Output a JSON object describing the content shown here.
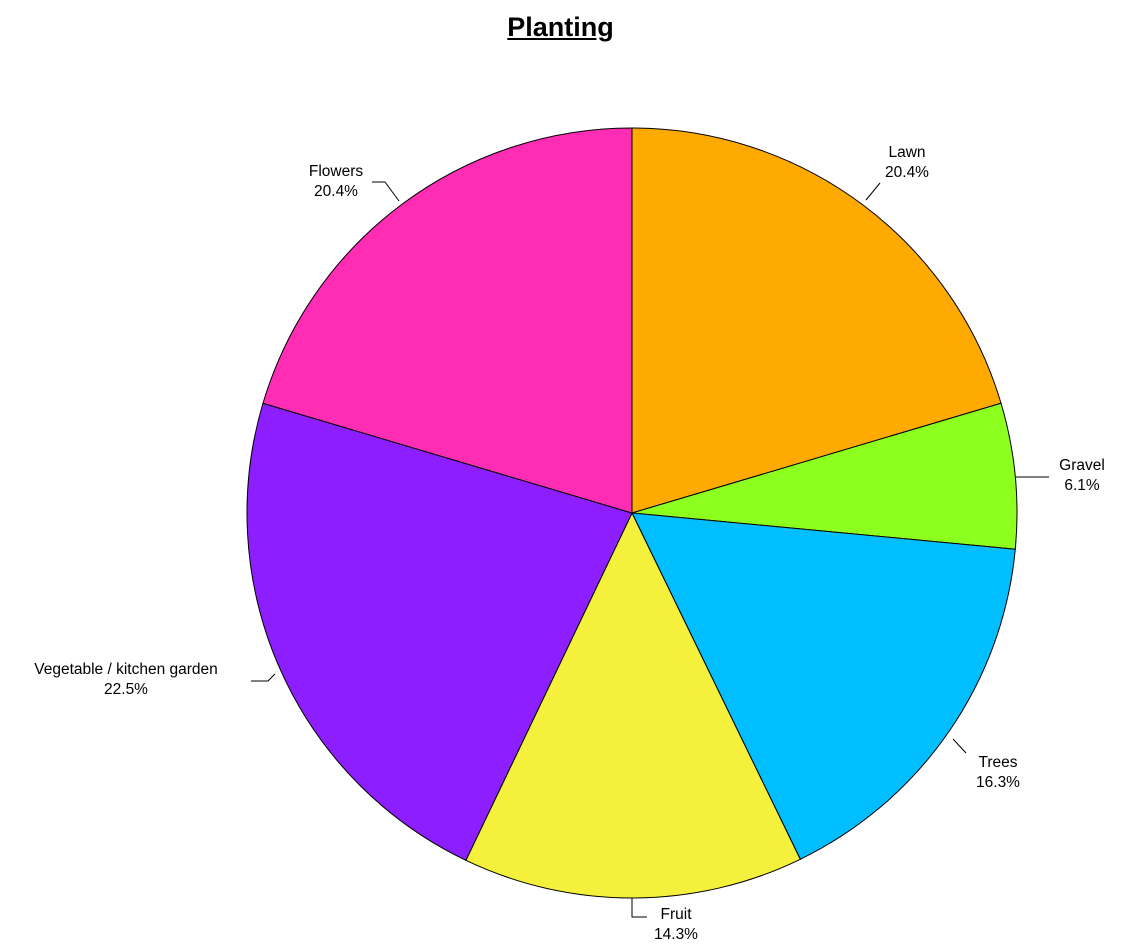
{
  "chart_data": {
    "type": "pie",
    "title": "Planting",
    "slices": [
      {
        "label": "Lawn",
        "pct_label": "20.4%",
        "value": 20.4,
        "color": "#FFAA00"
      },
      {
        "label": "Gravel",
        "pct_label": "6.1%",
        "value": 6.1,
        "color": "#8CFF1E"
      },
      {
        "label": "Trees",
        "pct_label": "16.3%",
        "value": 16.3,
        "color": "#00BEFF"
      },
      {
        "label": "Fruit",
        "pct_label": "14.3%",
        "value": 14.3,
        "color": "#F4F03C"
      },
      {
        "label": "Vegetable / kitchen garden",
        "pct_label": "22.5%",
        "value": 22.5,
        "color": "#8C1EFF"
      },
      {
        "label": "Flowers",
        "pct_label": "20.4%",
        "value": 20.4,
        "color": "#FF2DB4"
      }
    ],
    "start": "12 o'clock",
    "direction": "clockwise",
    "legend": "none"
  }
}
